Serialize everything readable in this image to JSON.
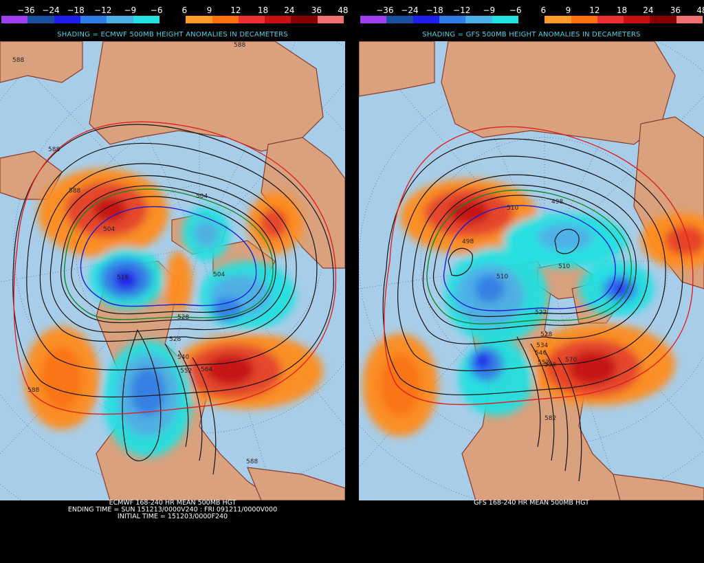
{
  "colorbar": {
    "labels": [
      "−36",
      "−24",
      "−18",
      "−12",
      "−9",
      "−6",
      "6",
      "9",
      "12",
      "18",
      "24",
      "36",
      "48"
    ],
    "colors": [
      "#a040f0",
      "#1a4fa0",
      "#1e1ef0",
      "#2f7fe8",
      "#4ab0e8",
      "#22e0e0",
      "#000000",
      "#ff9a2a",
      "#ff7010",
      "#ee3030",
      "#c81010",
      "#8a0000",
      "#f07070"
    ]
  },
  "left": {
    "shading_title": "SHADING = ECMWF 500MB HEIGHT ANOMALIES IN DECAMETERS",
    "caption_lines": [
      "ECMWF 168-240 HR MEAN 500MB HGT",
      "ENDING TIME = SUN 151213/0000V240 : FRI 091211/0000V000",
      "INITIAL TIME = 151203/0000F240"
    ],
    "contour_labels": [
      "588",
      "588",
      "588",
      "504",
      "504",
      "504",
      "516",
      "528",
      "528",
      "540",
      "552",
      "564",
      "588",
      "588",
      "588"
    ]
  },
  "right": {
    "shading_title": "SHADING = GFS 500MB HEIGHT ANOMALIES IN DECAMETERS",
    "caption_lines": [
      "GFS 168-240 HR MEAN 500MB HGT"
    ],
    "contour_labels": [
      "510",
      "498",
      "498",
      "510",
      "510",
      "522",
      "528",
      "534",
      "546",
      "552",
      "558",
      "570",
      "582"
    ]
  }
}
